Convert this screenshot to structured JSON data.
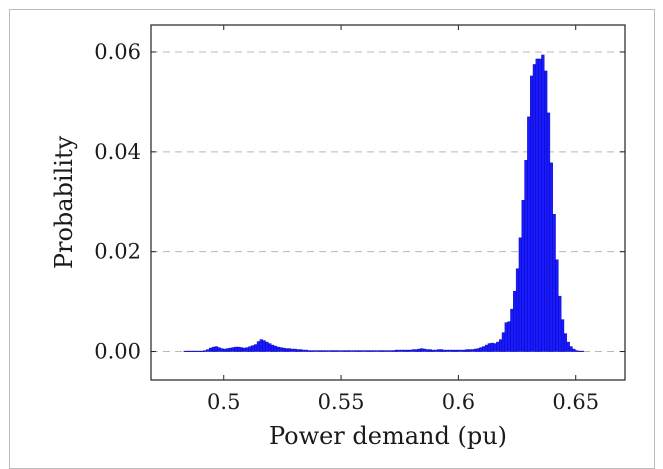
{
  "chart_data": {
    "type": "bar",
    "title": "",
    "xlabel": "Power demand (pu)",
    "ylabel": "Probability",
    "xlim": [
      0.469,
      0.671
    ],
    "ylim": [
      -0.0057,
      0.0654
    ],
    "xticks": [
      0.5,
      0.55,
      0.6,
      0.65
    ],
    "xtick_labels": [
      "0.5",
      "0.55",
      "0.6",
      "0.65"
    ],
    "yticks": [
      0,
      0.02,
      0.04,
      0.06
    ],
    "ytick_labels": [
      "0.00",
      "0.02",
      "0.04",
      "0.06"
    ],
    "grid": "horizontal-dashed",
    "legend": "none",
    "bar_color": "#1a1aff",
    "bar_edge_color": "#0000aa",
    "bin_start": 0.483,
    "bin_width": 0.0012,
    "values": [
      0.0001,
      0.0001,
      0.0001,
      0.0001,
      0.0001,
      0.0001,
      0.0001,
      0.0002,
      0.0004,
      0.0007,
      0.0009,
      0.001,
      0.0008,
      0.0006,
      0.0005,
      0.0006,
      0.0007,
      0.0008,
      0.0009,
      0.0009,
      0.0008,
      0.0007,
      0.0008,
      0.001,
      0.0012,
      0.0014,
      0.002,
      0.0024,
      0.0022,
      0.0019,
      0.0016,
      0.0013,
      0.0011,
      0.0009,
      0.0008,
      0.0007,
      0.0006,
      0.0006,
      0.0005,
      0.0005,
      0.0004,
      0.0004,
      0.0003,
      0.0003,
      0.0002,
      0.0002,
      0.0002,
      0.0002,
      0.0002,
      0.0002,
      0.0002,
      0.0002,
      0.0002,
      0.0002,
      0.0002,
      0.0002,
      0.0002,
      0.0002,
      0.0002,
      0.0002,
      0.0002,
      0.0002,
      0.0002,
      0.0002,
      0.0002,
      0.0002,
      0.0002,
      0.0002,
      0.0002,
      0.0002,
      0.0002,
      0.0002,
      0.0002,
      0.0002,
      0.0002,
      0.0003,
      0.0003,
      0.0003,
      0.0003,
      0.0003,
      0.0003,
      0.0004,
      0.0004,
      0.0005,
      0.0006,
      0.0005,
      0.0004,
      0.0004,
      0.0003,
      0.0003,
      0.0004,
      0.0004,
      0.0003,
      0.0003,
      0.0003,
      0.0003,
      0.0003,
      0.0003,
      0.0003,
      0.0003,
      0.0004,
      0.0004,
      0.0004,
      0.0005,
      0.0006,
      0.0008,
      0.001,
      0.0013,
      0.0016,
      0.0017,
      0.0016,
      0.0019,
      0.0024,
      0.0038,
      0.0058,
      0.006,
      0.0085,
      0.0121,
      0.0166,
      0.0228,
      0.0303,
      0.0383,
      0.047,
      0.0552,
      0.0575,
      0.0586,
      0.0586,
      0.0594,
      0.0562,
      0.0478,
      0.0378,
      0.0275,
      0.0184,
      0.0111,
      0.0064,
      0.0036,
      0.0019,
      0.001,
      0.0005,
      0.0002,
      0.0001,
      0.0001
    ]
  }
}
